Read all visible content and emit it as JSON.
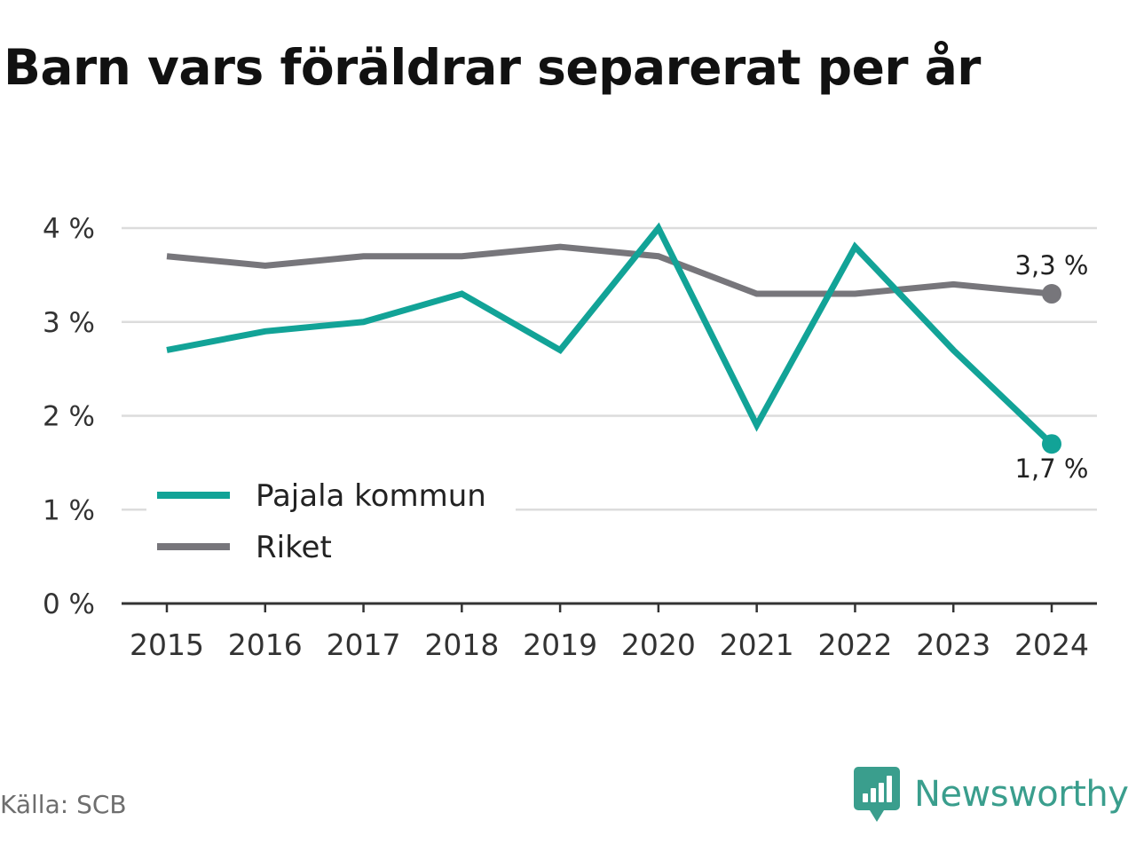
{
  "title": "Barn vars föräldrar separerat per år",
  "source": "Källa: SCB",
  "brand": {
    "name": "Newsworthy",
    "icon": "newsworthy-logo-icon",
    "color": "#3a9e8d"
  },
  "chart_data": {
    "type": "line",
    "title": "Barn vars föräldrar separerat per år",
    "x": [
      "2015",
      "2016",
      "2017",
      "2018",
      "2019",
      "2020",
      "2021",
      "2022",
      "2023",
      "2024"
    ],
    "series": [
      {
        "name": "Pajala kommun",
        "color": "#12a397",
        "values": [
          2.7,
          2.9,
          3.0,
          3.3,
          2.7,
          4.0,
          1.9,
          3.8,
          2.7,
          1.7
        ],
        "end_label": "1,7 %"
      },
      {
        "name": "Riket",
        "color": "#77767b",
        "values": [
          3.7,
          3.6,
          3.7,
          3.7,
          3.8,
          3.7,
          3.3,
          3.3,
          3.4,
          3.3
        ],
        "end_label": "3,3 %"
      }
    ],
    "yticks": [
      0,
      1,
      2,
      3,
      4
    ],
    "ytick_labels": [
      "0 %",
      "1 %",
      "2 %",
      "3 %",
      "4 %"
    ],
    "ylim": [
      0,
      4
    ],
    "xlabel": "",
    "ylabel": "",
    "grid": true,
    "legend_position": "bottom-left"
  }
}
